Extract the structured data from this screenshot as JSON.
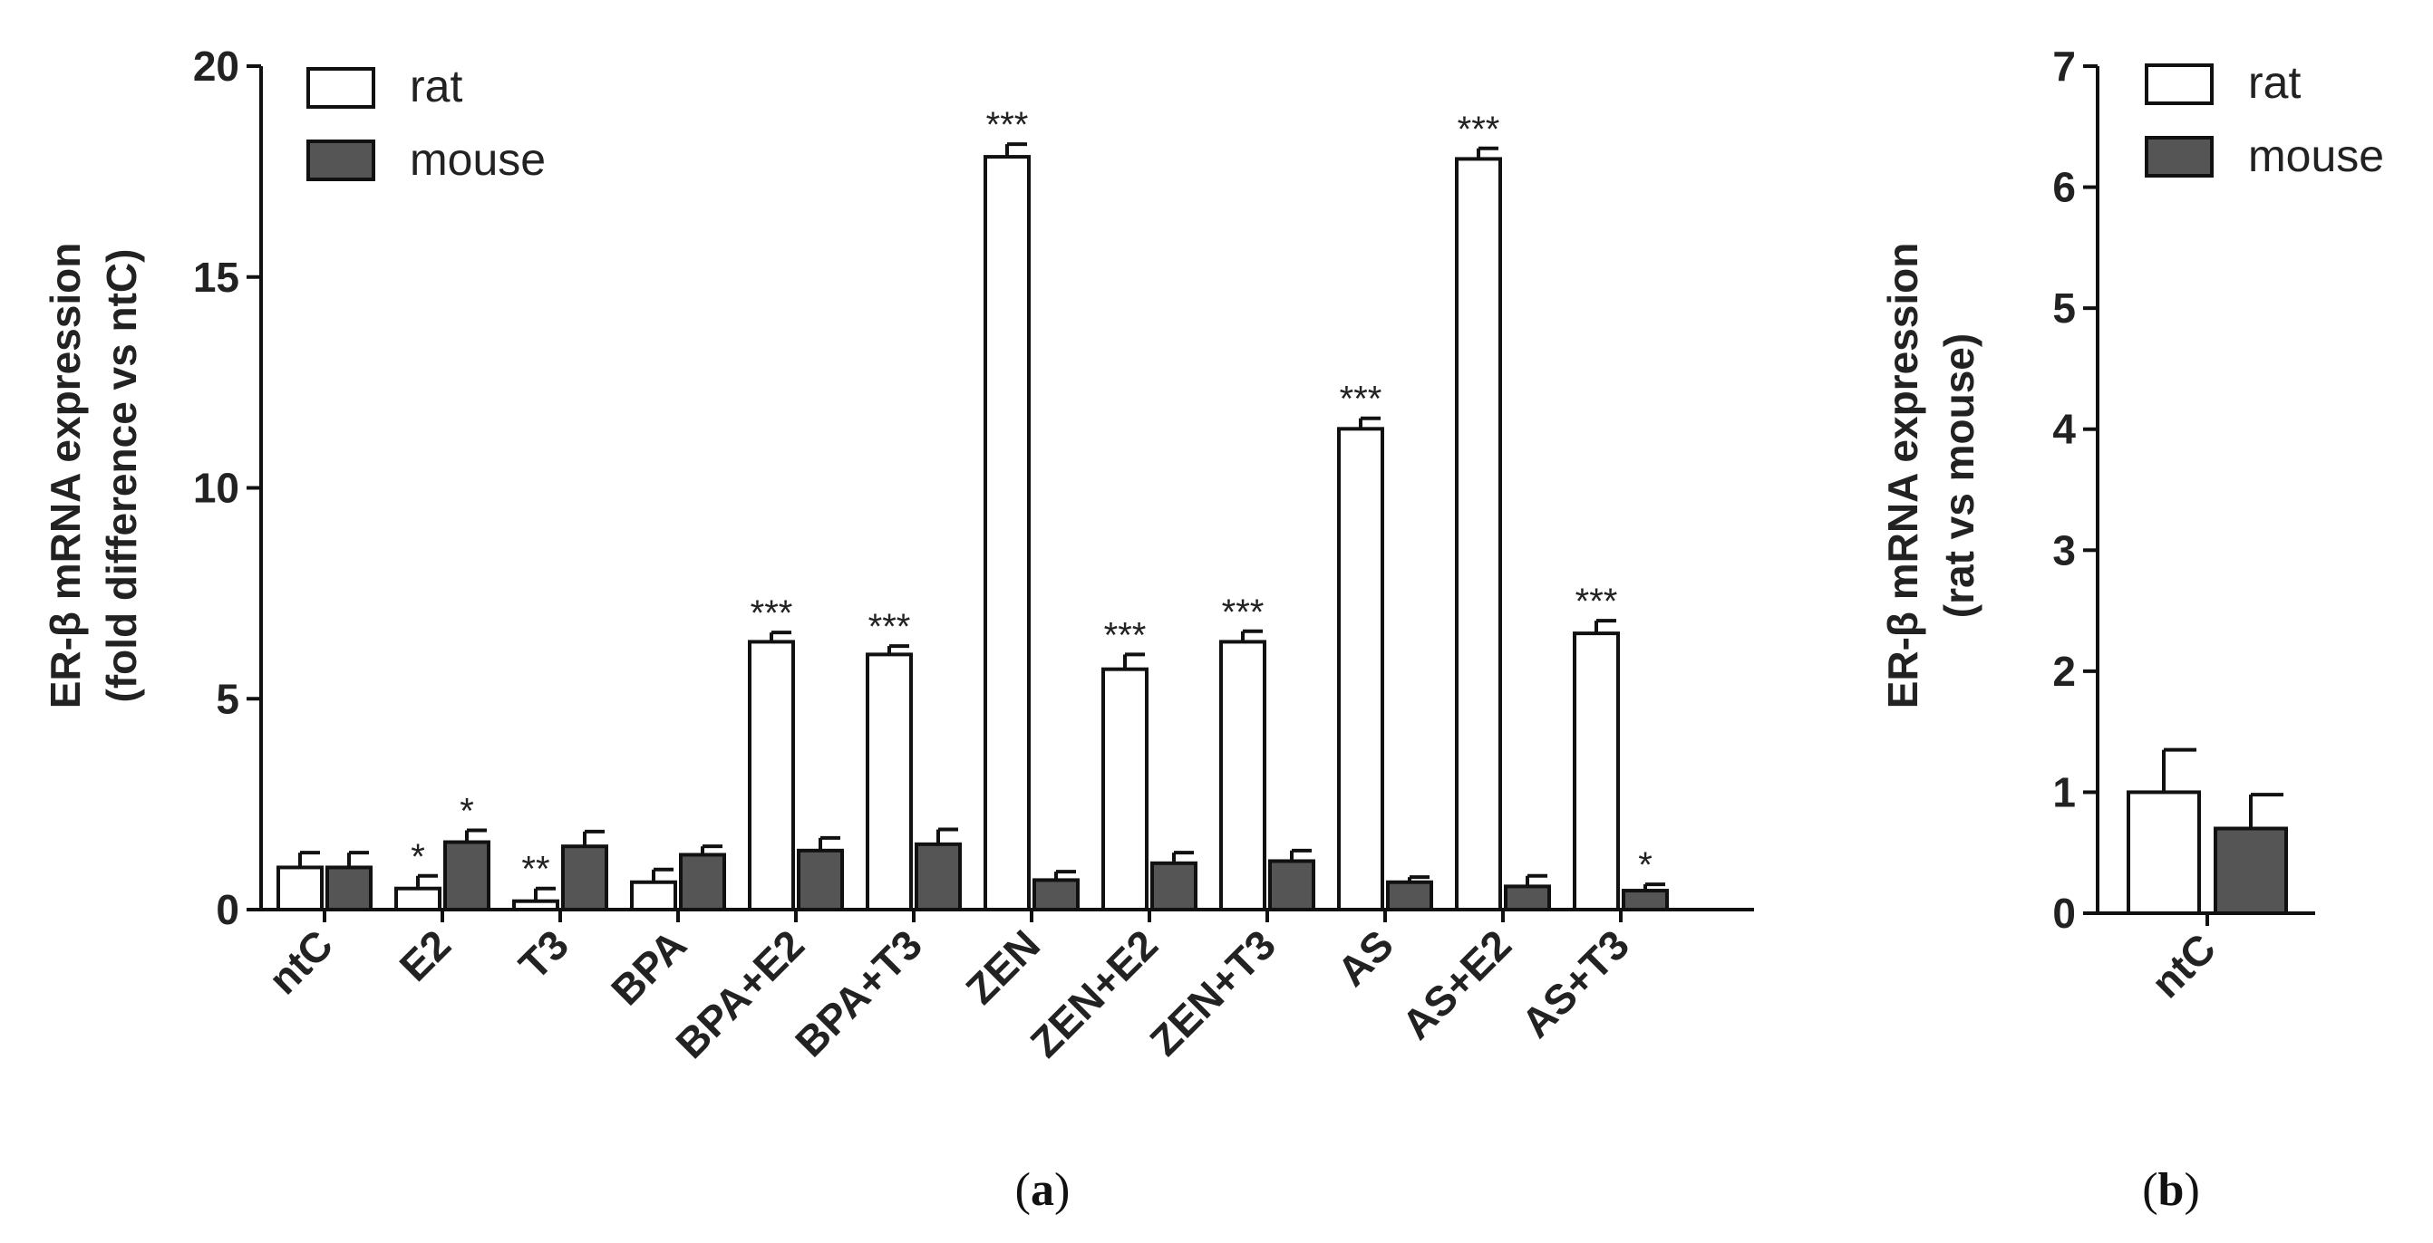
{
  "colors": {
    "rat": "#ffffff",
    "mouse": "#555555",
    "outline": "#111111",
    "background": "#ffffff"
  },
  "chart_data": [
    {
      "panel_label": "(a)",
      "panel_letter": "a",
      "type": "bar",
      "ylabel_line1": "ER-β mRNA expression",
      "ylabel_line2": "(fold difference vs ntC)",
      "xlabel": "",
      "ylim": [
        0,
        20
      ],
      "yticks": [
        0,
        5,
        10,
        15,
        20
      ],
      "legend": [
        "rat",
        "mouse"
      ],
      "legend_position": "top-left",
      "categories": [
        "ntC",
        "E2",
        "T3",
        "BPA",
        "BPA+E2",
        "BPA+T3",
        "ZEN",
        "ZEN+E2",
        "ZEN+T3",
        "AS",
        "AS+E2",
        "AS+T3"
      ],
      "series": [
        {
          "name": "rat",
          "values": [
            1.0,
            0.5,
            0.2,
            0.65,
            6.35,
            6.05,
            17.85,
            5.7,
            6.35,
            11.4,
            17.8,
            6.55
          ],
          "errors": [
            0.35,
            0.3,
            0.3,
            0.3,
            0.22,
            0.2,
            0.3,
            0.35,
            0.25,
            0.25,
            0.25,
            0.3
          ],
          "significance": [
            "",
            "*",
            "**",
            "",
            "***",
            "***",
            "***",
            "***",
            "***",
            "***",
            "***",
            "***"
          ]
        },
        {
          "name": "mouse",
          "values": [
            1.0,
            1.6,
            1.5,
            1.3,
            1.4,
            1.55,
            0.7,
            1.1,
            1.15,
            0.65,
            0.55,
            0.45
          ],
          "errors": [
            0.35,
            0.28,
            0.35,
            0.2,
            0.3,
            0.35,
            0.2,
            0.25,
            0.25,
            0.12,
            0.25,
            0.15
          ],
          "significance": [
            "",
            "*",
            "",
            "",
            "",
            "",
            "",
            "",
            "",
            "",
            "",
            "*"
          ]
        }
      ]
    },
    {
      "panel_label": "(b)",
      "panel_letter": "b",
      "type": "bar",
      "ylabel_line1": "ER-β mRNA expression",
      "ylabel_line2": "(rat vs mouse)",
      "xlabel": "",
      "ylim": [
        0,
        7
      ],
      "yticks": [
        0,
        1,
        2,
        3,
        4,
        5,
        6,
        7
      ],
      "legend": [
        "rat",
        "mouse"
      ],
      "legend_position": "top-right",
      "categories": [
        "ntC"
      ],
      "series": [
        {
          "name": "rat",
          "values": [
            1.0
          ],
          "errors": [
            0.35
          ],
          "significance": [
            ""
          ]
        },
        {
          "name": "mouse",
          "values": [
            0.7
          ],
          "errors": [
            0.28
          ],
          "significance": [
            ""
          ]
        }
      ]
    }
  ]
}
